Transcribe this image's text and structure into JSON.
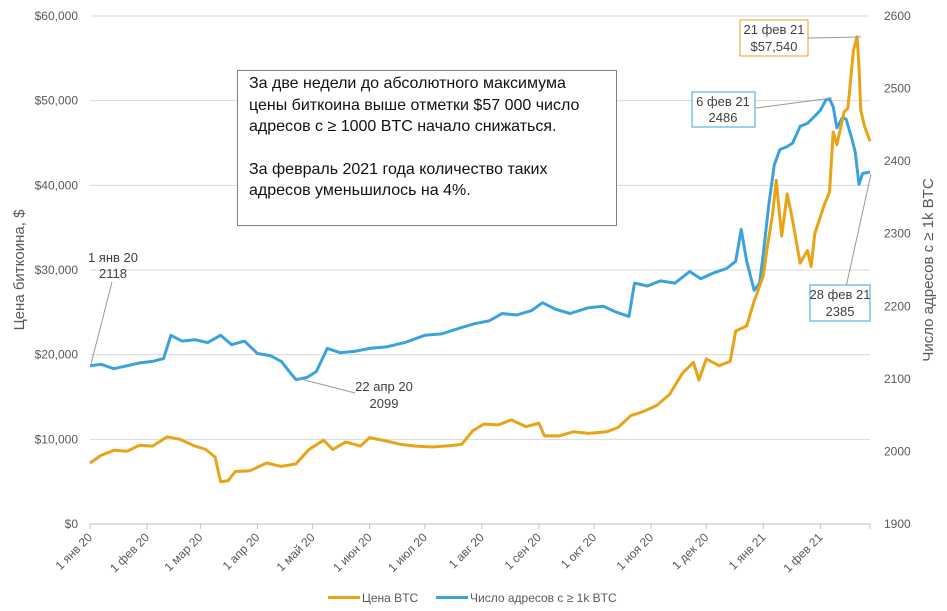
{
  "chart_data": {
    "type": "line",
    "xlabel": "",
    "ylabel": "Цена биткоина, $",
    "y2label": "Число адресов с ≥ 1k BTC",
    "ylim": [
      0,
      60000
    ],
    "y2lim": [
      1900,
      2600
    ],
    "xlim": [
      "2020-01-01",
      "2021-02-28"
    ],
    "grid": true,
    "legend_position": "bottom",
    "y_ticks": [
      "$0",
      "$10,000",
      "$20,000",
      "$30,000",
      "$40,000",
      "$50,000",
      "$60,000"
    ],
    "y2_ticks": [
      "1900",
      "2000",
      "2100",
      "2200",
      "2300",
      "2400",
      "2500",
      "2600"
    ],
    "x_ticks": [
      {
        "date": "2020-01-01",
        "label": "1 янв 20"
      },
      {
        "date": "2020-02-01",
        "label": "1 фев 20"
      },
      {
        "date": "2020-03-01",
        "label": "1 мар 20"
      },
      {
        "date": "2020-04-01",
        "label": "1 апр 20"
      },
      {
        "date": "2020-05-01",
        "label": "1 май 20"
      },
      {
        "date": "2020-06-01",
        "label": "1 июн 20"
      },
      {
        "date": "2020-07-01",
        "label": "1 июл 20"
      },
      {
        "date": "2020-08-01",
        "label": "1 авг 20"
      },
      {
        "date": "2020-09-01",
        "label": "1 сен 20"
      },
      {
        "date": "2020-10-01",
        "label": "1 окт 20"
      },
      {
        "date": "2020-11-01",
        "label": "1 ноя 20"
      },
      {
        "date": "2020-12-01",
        "label": "1 дек 20"
      },
      {
        "date": "2021-01-01",
        "label": "1 янв 21"
      },
      {
        "date": "2021-02-01",
        "label": "1 фев 21"
      }
    ],
    "series": [
      {
        "name": "Цена BTC",
        "axis": "left",
        "color": "#E8A317",
        "points": [
          [
            "2020-01-01",
            7200
          ],
          [
            "2020-01-07",
            8100
          ],
          [
            "2020-01-14",
            8700
          ],
          [
            "2020-01-21",
            8600
          ],
          [
            "2020-01-28",
            9300
          ],
          [
            "2020-02-04",
            9200
          ],
          [
            "2020-02-12",
            10300
          ],
          [
            "2020-02-19",
            10000
          ],
          [
            "2020-02-26",
            9300
          ],
          [
            "2020-03-04",
            8800
          ],
          [
            "2020-03-09",
            7900
          ],
          [
            "2020-03-12",
            5000
          ],
          [
            "2020-03-16",
            5100
          ],
          [
            "2020-03-20",
            6200
          ],
          [
            "2020-03-28",
            6300
          ],
          [
            "2020-04-06",
            7200
          ],
          [
            "2020-04-14",
            6800
          ],
          [
            "2020-04-22",
            7100
          ],
          [
            "2020-04-29",
            8800
          ],
          [
            "2020-05-07",
            9900
          ],
          [
            "2020-05-12",
            8800
          ],
          [
            "2020-05-19",
            9700
          ],
          [
            "2020-05-27",
            9200
          ],
          [
            "2020-06-01",
            10200
          ],
          [
            "2020-06-10",
            9800
          ],
          [
            "2020-06-18",
            9400
          ],
          [
            "2020-06-26",
            9200
          ],
          [
            "2020-07-05",
            9100
          ],
          [
            "2020-07-14",
            9250
          ],
          [
            "2020-07-21",
            9400
          ],
          [
            "2020-07-27",
            11000
          ],
          [
            "2020-08-02",
            11800
          ],
          [
            "2020-08-10",
            11700
          ],
          [
            "2020-08-17",
            12300
          ],
          [
            "2020-08-25",
            11500
          ],
          [
            "2020-09-01",
            11900
          ],
          [
            "2020-09-04",
            10400
          ],
          [
            "2020-09-12",
            10400
          ],
          [
            "2020-09-20",
            10900
          ],
          [
            "2020-09-28",
            10700
          ],
          [
            "2020-10-08",
            10900
          ],
          [
            "2020-10-14",
            11400
          ],
          [
            "2020-10-21",
            12800
          ],
          [
            "2020-10-28",
            13300
          ],
          [
            "2020-11-04",
            14000
          ],
          [
            "2020-11-11",
            15300
          ],
          [
            "2020-11-18",
            17800
          ],
          [
            "2020-11-24",
            19100
          ],
          [
            "2020-11-27",
            17000
          ],
          [
            "2020-12-01",
            19500
          ],
          [
            "2020-12-08",
            18700
          ],
          [
            "2020-12-14",
            19200
          ],
          [
            "2020-12-17",
            22800
          ],
          [
            "2020-12-23",
            23400
          ],
          [
            "2020-12-27",
            26300
          ],
          [
            "2021-01-01",
            29300
          ],
          [
            "2021-01-03",
            32500
          ],
          [
            "2021-01-06",
            36500
          ],
          [
            "2021-01-08",
            40600
          ],
          [
            "2021-01-11",
            34000
          ],
          [
            "2021-01-14",
            39000
          ],
          [
            "2021-01-17",
            35800
          ],
          [
            "2021-01-21",
            30800
          ],
          [
            "2021-01-25",
            32300
          ],
          [
            "2021-01-27",
            30400
          ],
          [
            "2021-01-29",
            34300
          ],
          [
            "2021-02-03",
            37600
          ],
          [
            "2021-02-06",
            39200
          ],
          [
            "2021-02-08",
            46300
          ],
          [
            "2021-02-10",
            44800
          ],
          [
            "2021-02-14",
            48700
          ],
          [
            "2021-02-16",
            49100
          ],
          [
            "2021-02-19",
            55900
          ],
          [
            "2021-02-21",
            57540
          ],
          [
            "2021-02-22",
            54000
          ],
          [
            "2021-02-23",
            48800
          ],
          [
            "2021-02-25",
            47000
          ],
          [
            "2021-02-28",
            45200
          ]
        ]
      },
      {
        "name": "Число адресов с ≥ 1k BTC",
        "axis": "right",
        "color": "#3BA3DC",
        "points": [
          [
            "2020-01-01",
            2118
          ],
          [
            "2020-01-07",
            2120
          ],
          [
            "2020-01-14",
            2114
          ],
          [
            "2020-01-21",
            2118
          ],
          [
            "2020-01-28",
            2122
          ],
          [
            "2020-02-04",
            2124
          ],
          [
            "2020-02-10",
            2128
          ],
          [
            "2020-02-14",
            2160
          ],
          [
            "2020-02-20",
            2152
          ],
          [
            "2020-02-27",
            2154
          ],
          [
            "2020-03-05",
            2150
          ],
          [
            "2020-03-12",
            2160
          ],
          [
            "2020-03-18",
            2147
          ],
          [
            "2020-03-25",
            2152
          ],
          [
            "2020-04-01",
            2135
          ],
          [
            "2020-04-08",
            2132
          ],
          [
            "2020-04-14",
            2124
          ],
          [
            "2020-04-19",
            2108
          ],
          [
            "2020-04-22",
            2099
          ],
          [
            "2020-04-28",
            2102
          ],
          [
            "2020-05-03",
            2110
          ],
          [
            "2020-05-09",
            2142
          ],
          [
            "2020-05-16",
            2136
          ],
          [
            "2020-05-24",
            2138
          ],
          [
            "2020-06-01",
            2142
          ],
          [
            "2020-06-10",
            2144
          ],
          [
            "2020-06-20",
            2150
          ],
          [
            "2020-07-01",
            2160
          ],
          [
            "2020-07-10",
            2162
          ],
          [
            "2020-07-20",
            2170
          ],
          [
            "2020-07-28",
            2176
          ],
          [
            "2020-08-05",
            2180
          ],
          [
            "2020-08-12",
            2190
          ],
          [
            "2020-08-20",
            2188
          ],
          [
            "2020-08-28",
            2194
          ],
          [
            "2020-09-03",
            2205
          ],
          [
            "2020-09-10",
            2196
          ],
          [
            "2020-09-18",
            2190
          ],
          [
            "2020-09-28",
            2198
          ],
          [
            "2020-10-06",
            2200
          ],
          [
            "2020-10-13",
            2192
          ],
          [
            "2020-10-20",
            2186
          ],
          [
            "2020-10-23",
            2232
          ],
          [
            "2020-10-30",
            2228
          ],
          [
            "2020-11-06",
            2235
          ],
          [
            "2020-11-14",
            2232
          ],
          [
            "2020-11-22",
            2248
          ],
          [
            "2020-11-28",
            2238
          ],
          [
            "2020-12-05",
            2246
          ],
          [
            "2020-12-12",
            2252
          ],
          [
            "2020-12-17",
            2262
          ],
          [
            "2020-12-20",
            2306
          ],
          [
            "2020-12-23",
            2262
          ],
          [
            "2020-12-27",
            2222
          ],
          [
            "2020-12-30",
            2232
          ],
          [
            "2021-01-01",
            2272
          ],
          [
            "2021-01-04",
            2340
          ],
          [
            "2021-01-07",
            2395
          ],
          [
            "2021-01-10",
            2416
          ],
          [
            "2021-01-14",
            2420
          ],
          [
            "2021-01-17",
            2425
          ],
          [
            "2021-01-21",
            2448
          ],
          [
            "2021-01-25",
            2452
          ],
          [
            "2021-01-29",
            2462
          ],
          [
            "2021-02-01",
            2470
          ],
          [
            "2021-02-04",
            2484
          ],
          [
            "2021-02-06",
            2486
          ],
          [
            "2021-02-08",
            2475
          ],
          [
            "2021-02-10",
            2446
          ],
          [
            "2021-02-13",
            2460
          ],
          [
            "2021-02-15",
            2458
          ],
          [
            "2021-02-18",
            2432
          ],
          [
            "2021-02-20",
            2412
          ],
          [
            "2021-02-22",
            2368
          ],
          [
            "2021-02-24",
            2383
          ],
          [
            "2021-02-28",
            2385
          ]
        ]
      }
    ],
    "annotations": [
      {
        "line1": "1 янв 20",
        "line2": "2118"
      },
      {
        "line1": "22 апр 20",
        "line2": "2099"
      },
      {
        "line1": "6 фев 21",
        "line2": "2486"
      },
      {
        "line1": "21 фев 21",
        "line2": "$57,540"
      },
      {
        "line1": "28 фев 21",
        "line2": "2385"
      }
    ]
  },
  "note": {
    "paragraph1": "За две недели до абсолютного максимума цены биткоина выше отметки $57 000 число адресов с ≥ 1000 BTC начало снижаться.",
    "paragraph2": "За февраль 2021 года количество таких адресов уменьшилось на 4%."
  }
}
